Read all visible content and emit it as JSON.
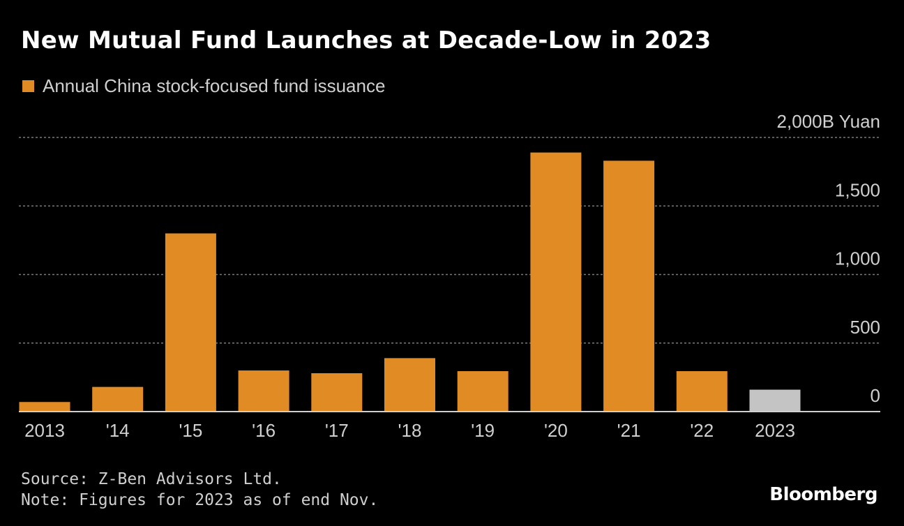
{
  "chart_data": {
    "type": "bar",
    "title": "New Mutual Fund Launches at Decade-Low in 2023",
    "legend": "Annual China stock-focused fund issuance",
    "categories": [
      "2013",
      "'14",
      "'15",
      "'16",
      "'17",
      "'18",
      "'19",
      "'20",
      "'21",
      "'22",
      "2023"
    ],
    "values": [
      70,
      180,
      1300,
      300,
      280,
      390,
      295,
      1890,
      1830,
      295,
      160
    ],
    "highlight_index": 10,
    "ylim": [
      0,
      2000
    ],
    "y_ticks": [
      0,
      500,
      1000,
      1500,
      2000
    ],
    "y_tick_labels": [
      "0",
      "500",
      "1,000",
      "1,500",
      "2,000B Yuan"
    ],
    "ylabel": "",
    "xlabel": "",
    "grid": true,
    "colors": {
      "bar": "#e08b24",
      "highlight": "#c4c4c4",
      "grid": "#7a7a7a",
      "axis": "#d0d0d0",
      "tick_text": "#d0d0d0"
    }
  },
  "source": "Source: Z-Ben Advisors Ltd.",
  "note": "Note: Figures for 2023 as of end Nov.",
  "brand": "Bloomberg"
}
